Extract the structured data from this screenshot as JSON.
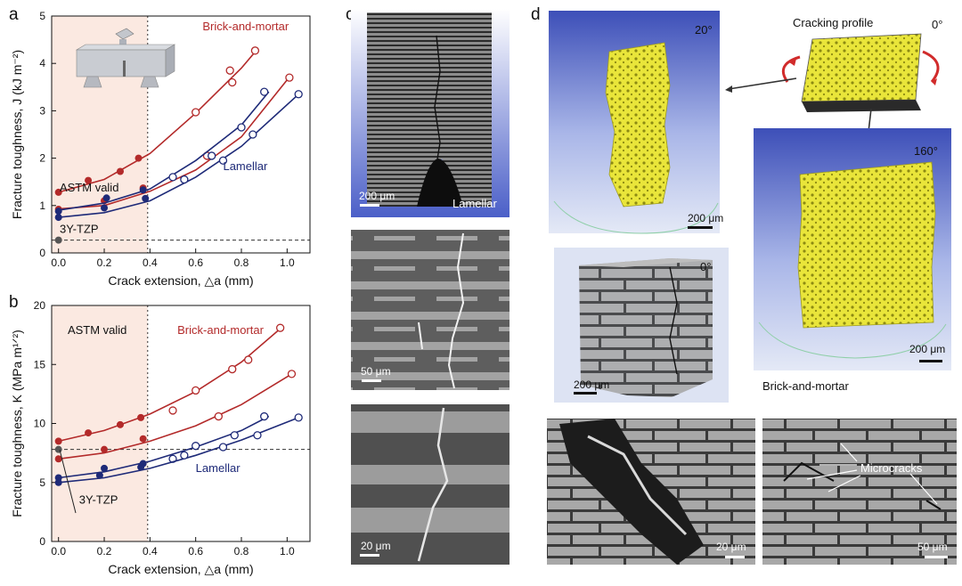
{
  "panel_labels": {
    "a": "a",
    "b": "b",
    "c": "c",
    "d": "d"
  },
  "colors": {
    "red": "#b32a2a",
    "navy": "#1e2a78",
    "valid_bg": "#fbe9e1",
    "tzp": "#555555",
    "yellow": "#e9e53a"
  },
  "chart_data": [
    {
      "type": "scatter",
      "panel": "a",
      "xlabel": "Crack extension, △a (mm)",
      "ylabel": "Fracture toughness, J (kJ m⁻²)",
      "xlim": [
        -0.03,
        1.1
      ],
      "ylim": [
        0,
        5
      ],
      "xticks": [
        0.0,
        0.2,
        0.4,
        0.6,
        0.8,
        1.0
      ],
      "xtick_labels": [
        "0.0",
        "0.2",
        "0.4",
        "0.6",
        "0.8",
        "1.0"
      ],
      "yticks": [
        0,
        1,
        2,
        3,
        4,
        5
      ],
      "ytick_labels": [
        "0",
        "1",
        "2",
        "3",
        "4",
        "5"
      ],
      "valid_limit": 0.39,
      "ref_line": 0.27,
      "annotations": {
        "valid": "ASTM valid",
        "bm": "Brick-and-mortar",
        "lam": "Lamellar",
        "tzp": "3Y-TZP"
      },
      "series": [
        {
          "name": "Brick-and-mortar",
          "color": "red",
          "filled": [
            [
              0,
              1.28
            ],
            [
              0.13,
              1.53
            ],
            [
              0.27,
              1.72
            ],
            [
              0.35,
              2.0
            ]
          ],
          "open": [
            [
              0.6,
              2.97
            ],
            [
              0.75,
              3.85
            ],
            [
              0.86,
              4.27
            ]
          ],
          "curve": [
            [
              0,
              1.28
            ],
            [
              0.2,
              1.55
            ],
            [
              0.4,
              2.1
            ],
            [
              0.6,
              2.95
            ],
            [
              0.8,
              3.9
            ],
            [
              0.87,
              4.3
            ]
          ]
        },
        {
          "name": "Brick-and-mortar",
          "color": "red",
          "filled": [
            [
              0,
              0.92
            ],
            [
              0.2,
              1.1
            ],
            [
              0.37,
              1.37
            ]
          ],
          "open": [
            [
              0.65,
              2.05
            ],
            [
              0.76,
              3.6
            ],
            [
              1.01,
              3.7
            ]
          ],
          "curve": [
            [
              0,
              0.93
            ],
            [
              0.2,
              1.0
            ],
            [
              0.4,
              1.3
            ],
            [
              0.6,
              1.75
            ],
            [
              0.8,
              2.45
            ],
            [
              1.0,
              3.65
            ]
          ]
        },
        {
          "name": "Lamellar",
          "color": "navy",
          "filled": [
            [
              0,
              0.88
            ],
            [
              0.21,
              1.16
            ],
            [
              0.37,
              1.33
            ]
          ],
          "open": [
            [
              0.5,
              1.6
            ],
            [
              0.67,
              2.05
            ],
            [
              0.8,
              2.65
            ],
            [
              0.9,
              3.4
            ]
          ],
          "curve": [
            [
              0,
              0.9
            ],
            [
              0.2,
              1.05
            ],
            [
              0.4,
              1.35
            ],
            [
              0.6,
              1.95
            ],
            [
              0.8,
              2.7
            ],
            [
              0.92,
              3.4
            ]
          ]
        },
        {
          "name": "Lamellar",
          "color": "navy",
          "filled": [
            [
              0,
              0.75
            ],
            [
              0.2,
              0.95
            ],
            [
              0.38,
              1.15
            ]
          ],
          "open": [
            [
              0.55,
              1.55
            ],
            [
              0.72,
              1.95
            ],
            [
              0.85,
              2.5
            ],
            [
              1.05,
              3.35
            ]
          ],
          "curve": [
            [
              0,
              0.75
            ],
            [
              0.2,
              0.85
            ],
            [
              0.4,
              1.1
            ],
            [
              0.6,
              1.6
            ],
            [
              0.8,
              2.25
            ],
            [
              1.05,
              3.35
            ]
          ]
        }
      ],
      "tzp_point": [
        0,
        0.27
      ]
    },
    {
      "type": "scatter",
      "panel": "b",
      "xlabel": "Crack extension, △a (mm)",
      "ylabel": "Fracture toughness, K (MPa m¹ᐟ²)",
      "xlim": [
        -0.03,
        1.1
      ],
      "ylim": [
        0,
        20
      ],
      "xticks": [
        0.0,
        0.2,
        0.4,
        0.6,
        0.8,
        1.0
      ],
      "xtick_labels": [
        "0.0",
        "0.2",
        "0.4",
        "0.6",
        "0.8",
        "1.0"
      ],
      "yticks": [
        0,
        5,
        10,
        15,
        20
      ],
      "ytick_labels": [
        "0",
        "5",
        "10",
        "15",
        "20"
      ],
      "valid_limit": 0.39,
      "ref_line": 7.8,
      "annotations": {
        "valid": "ASTM valid",
        "bm": "Brick-and-mortar",
        "lam": "Lamellar",
        "tzp": "3Y-TZP"
      },
      "series": [
        {
          "name": "Brick-and-mortar",
          "color": "red",
          "filled": [
            [
              0,
              8.5
            ],
            [
              0.13,
              9.2
            ],
            [
              0.27,
              9.9
            ],
            [
              0.36,
              10.5
            ]
          ],
          "open": [
            [
              0.6,
              12.8
            ],
            [
              0.76,
              14.6
            ],
            [
              0.97,
              18.1
            ]
          ],
          "curve": [
            [
              0,
              8.5
            ],
            [
              0.2,
              9.4
            ],
            [
              0.4,
              10.8
            ],
            [
              0.6,
              12.7
            ],
            [
              0.8,
              15.2
            ],
            [
              0.98,
              18.2
            ]
          ]
        },
        {
          "name": "Brick-and-mortar",
          "color": "red",
          "filled": [
            [
              0,
              7.0
            ],
            [
              0.2,
              7.8
            ],
            [
              0.37,
              8.7
            ]
          ],
          "open": [
            [
              0.5,
              11.1
            ],
            [
              0.7,
              10.6
            ],
            [
              0.83,
              15.4
            ],
            [
              1.02,
              14.2
            ]
          ],
          "curve": [
            [
              0,
              7.0
            ],
            [
              0.2,
              7.5
            ],
            [
              0.4,
              8.5
            ],
            [
              0.6,
              9.8
            ],
            [
              0.8,
              11.6
            ],
            [
              1.02,
              14.2
            ]
          ]
        },
        {
          "name": "Lamellar",
          "color": "navy",
          "filled": [
            [
              0,
              5.4
            ],
            [
              0.2,
              6.2
            ],
            [
              0.37,
              6.6
            ]
          ],
          "open": [
            [
              0.5,
              7.0
            ],
            [
              0.6,
              8.1
            ],
            [
              0.77,
              9.0
            ],
            [
              0.9,
              10.6
            ]
          ],
          "curve": [
            [
              0,
              5.4
            ],
            [
              0.2,
              5.9
            ],
            [
              0.4,
              6.8
            ],
            [
              0.6,
              8.0
            ],
            [
              0.8,
              9.4
            ],
            [
              0.92,
              10.6
            ]
          ]
        },
        {
          "name": "Lamellar",
          "color": "navy",
          "filled": [
            [
              0,
              5.0
            ],
            [
              0.18,
              5.6
            ],
            [
              0.36,
              6.3
            ]
          ],
          "open": [
            [
              0.55,
              7.3
            ],
            [
              0.72,
              8.0
            ],
            [
              0.87,
              9.0
            ],
            [
              1.05,
              10.5
            ]
          ],
          "curve": [
            [
              0,
              5.0
            ],
            [
              0.2,
              5.4
            ],
            [
              0.4,
              6.2
            ],
            [
              0.6,
              7.3
            ],
            [
              0.8,
              8.6
            ],
            [
              1.05,
              10.5
            ]
          ]
        }
      ],
      "tzp_point": [
        0,
        7.8
      ]
    }
  ],
  "panel_c": {
    "scale1": "200 μm",
    "label1": "Lamellar",
    "scale2": "50 μm",
    "scale3": "20 μm"
  },
  "panel_d": {
    "angle_left": "20°",
    "angle_top": "0°",
    "angle_right": "160°",
    "angle_center": "0°",
    "cracking_profile": "Cracking profile",
    "scale_left": "200 μm",
    "scale_right": "200 μm",
    "scale_center": "200 μm",
    "brick_mortar": "Brick-and-mortar",
    "scale_bl": "20 μm",
    "scale_br": "50 μm",
    "microcracks": "Microcracks"
  }
}
